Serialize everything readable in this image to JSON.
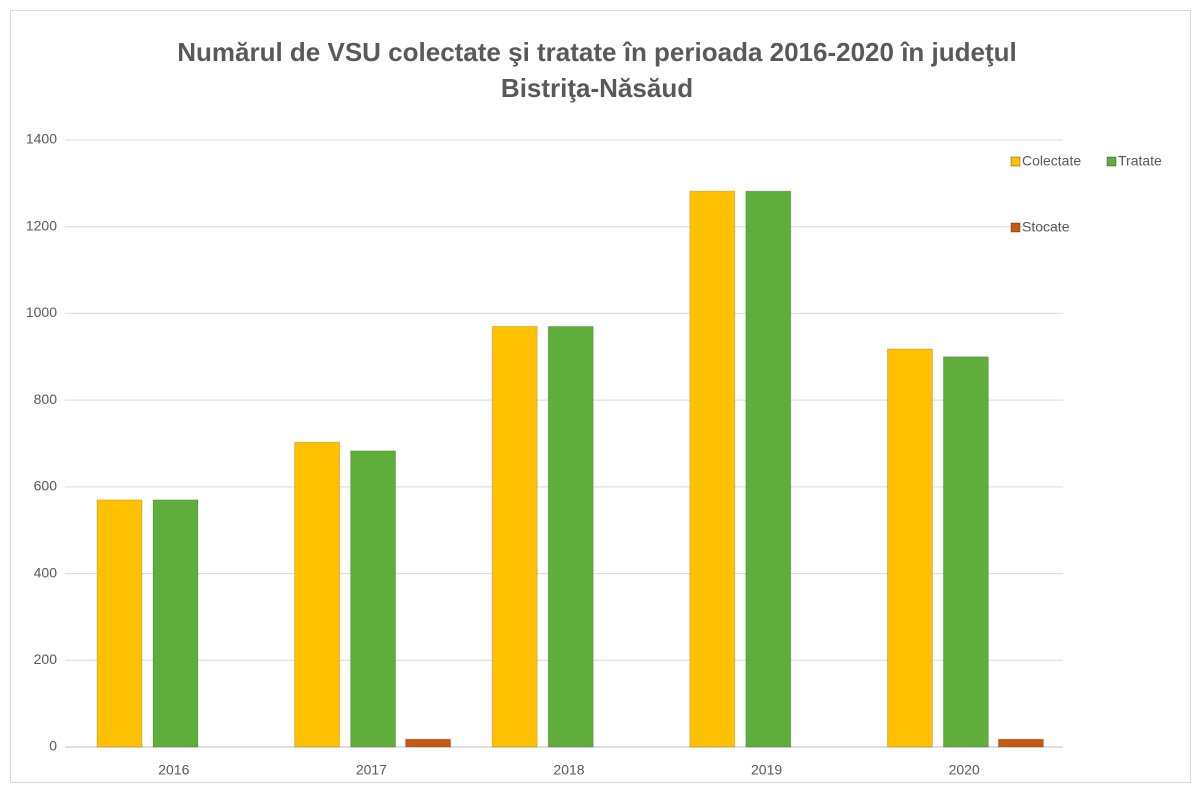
{
  "chart_data": {
    "type": "bar",
    "title": "Numărul de VSU colectate şi tratate în perioada 2016-2020 în judeţul Bistriţa-Năsăud",
    "categories": [
      "2016",
      "2017",
      "2018",
      "2019",
      "2020"
    ],
    "series": [
      {
        "name": "Colectate",
        "color": "#ffc000",
        "values": [
          570,
          703,
          970,
          1282,
          918
        ]
      },
      {
        "name": "Tratate",
        "color": "#5fae3c",
        "values": [
          570,
          683,
          970,
          1282,
          900
        ]
      },
      {
        "name": "Stocate",
        "color": "#c55a11",
        "values": [
          0,
          18,
          0,
          0,
          18
        ]
      }
    ],
    "ylim": [
      0,
      1400
    ],
    "yticks": [
      0,
      200,
      400,
      600,
      800,
      1000,
      1200,
      1400
    ],
    "grid": true,
    "legend": "right"
  }
}
